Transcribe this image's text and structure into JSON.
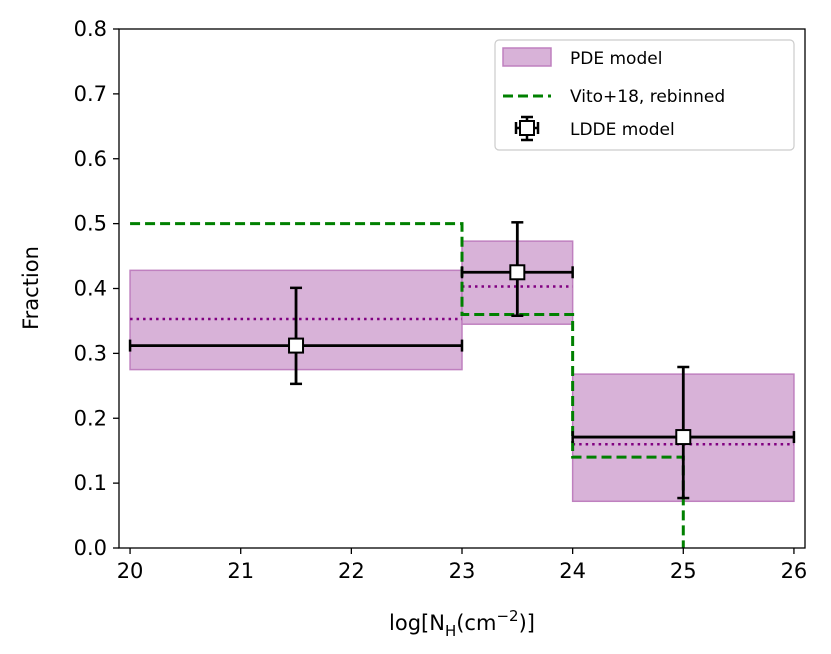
{
  "chart_data": {
    "type": "step-errorbar",
    "xlabel_prefix": "log[N",
    "xlabel_sub": "H",
    "xlabel_mid": "(cm",
    "xlabel_sup": "−2",
    "xlabel_suffix": ")]",
    "ylabel": "Fraction",
    "xlim": [
      19.9,
      26.1
    ],
    "ylim": [
      0.0,
      0.8
    ],
    "xticks": [
      20,
      21,
      22,
      23,
      24,
      25,
      26
    ],
    "xtick_labels": [
      "20",
      "21",
      "22",
      "23",
      "24",
      "25",
      "26"
    ],
    "yticks": [
      0.0,
      0.1,
      0.2,
      0.3,
      0.4,
      0.5,
      0.6,
      0.7,
      0.8
    ],
    "ytick_labels": [
      "0.0",
      "0.1",
      "0.2",
      "0.3",
      "0.4",
      "0.5",
      "0.6",
      "0.7",
      "0.8"
    ],
    "pde_model": {
      "name": "PDE model",
      "color": "#d8b2d8",
      "edge_color": "#bf80bf",
      "median_color": "#800080",
      "bins": [
        {
          "x0": 20,
          "x1": 23,
          "lo": 0.275,
          "hi": 0.428,
          "median": 0.353
        },
        {
          "x0": 23,
          "x1": 24,
          "lo": 0.345,
          "hi": 0.473,
          "median": 0.403
        },
        {
          "x0": 24,
          "x1": 26,
          "lo": 0.072,
          "hi": 0.268,
          "median": 0.16
        }
      ]
    },
    "vito18": {
      "name": "Vito+18, rebinned",
      "color": "#008000",
      "steps": [
        {
          "x0": 20,
          "x1": 23,
          "y": 0.5
        },
        {
          "x0": 23,
          "x1": 24,
          "y": 0.36
        },
        {
          "x0": 24,
          "x1": 25,
          "y": 0.14
        },
        {
          "x0": 25,
          "x1": 25,
          "y": 0.0
        }
      ]
    },
    "ldde_model": {
      "name": "LDDE model",
      "color": "#000000",
      "points": [
        {
          "x": 21.5,
          "y": 0.312,
          "xerr_lo": 20,
          "xerr_hi": 23,
          "y_lo": 0.253,
          "y_hi": 0.401
        },
        {
          "x": 23.5,
          "y": 0.425,
          "xerr_lo": 23,
          "xerr_hi": 24,
          "y_lo": 0.358,
          "y_hi": 0.502
        },
        {
          "x": 25.0,
          "y": 0.171,
          "xerr_lo": 24,
          "xerr_hi": 26,
          "y_lo": 0.077,
          "y_hi": 0.279
        }
      ]
    },
    "legend": {
      "placement": "top-right",
      "entries": [
        "PDE model",
        "Vito+18, rebinned",
        "LDDE model"
      ]
    }
  }
}
